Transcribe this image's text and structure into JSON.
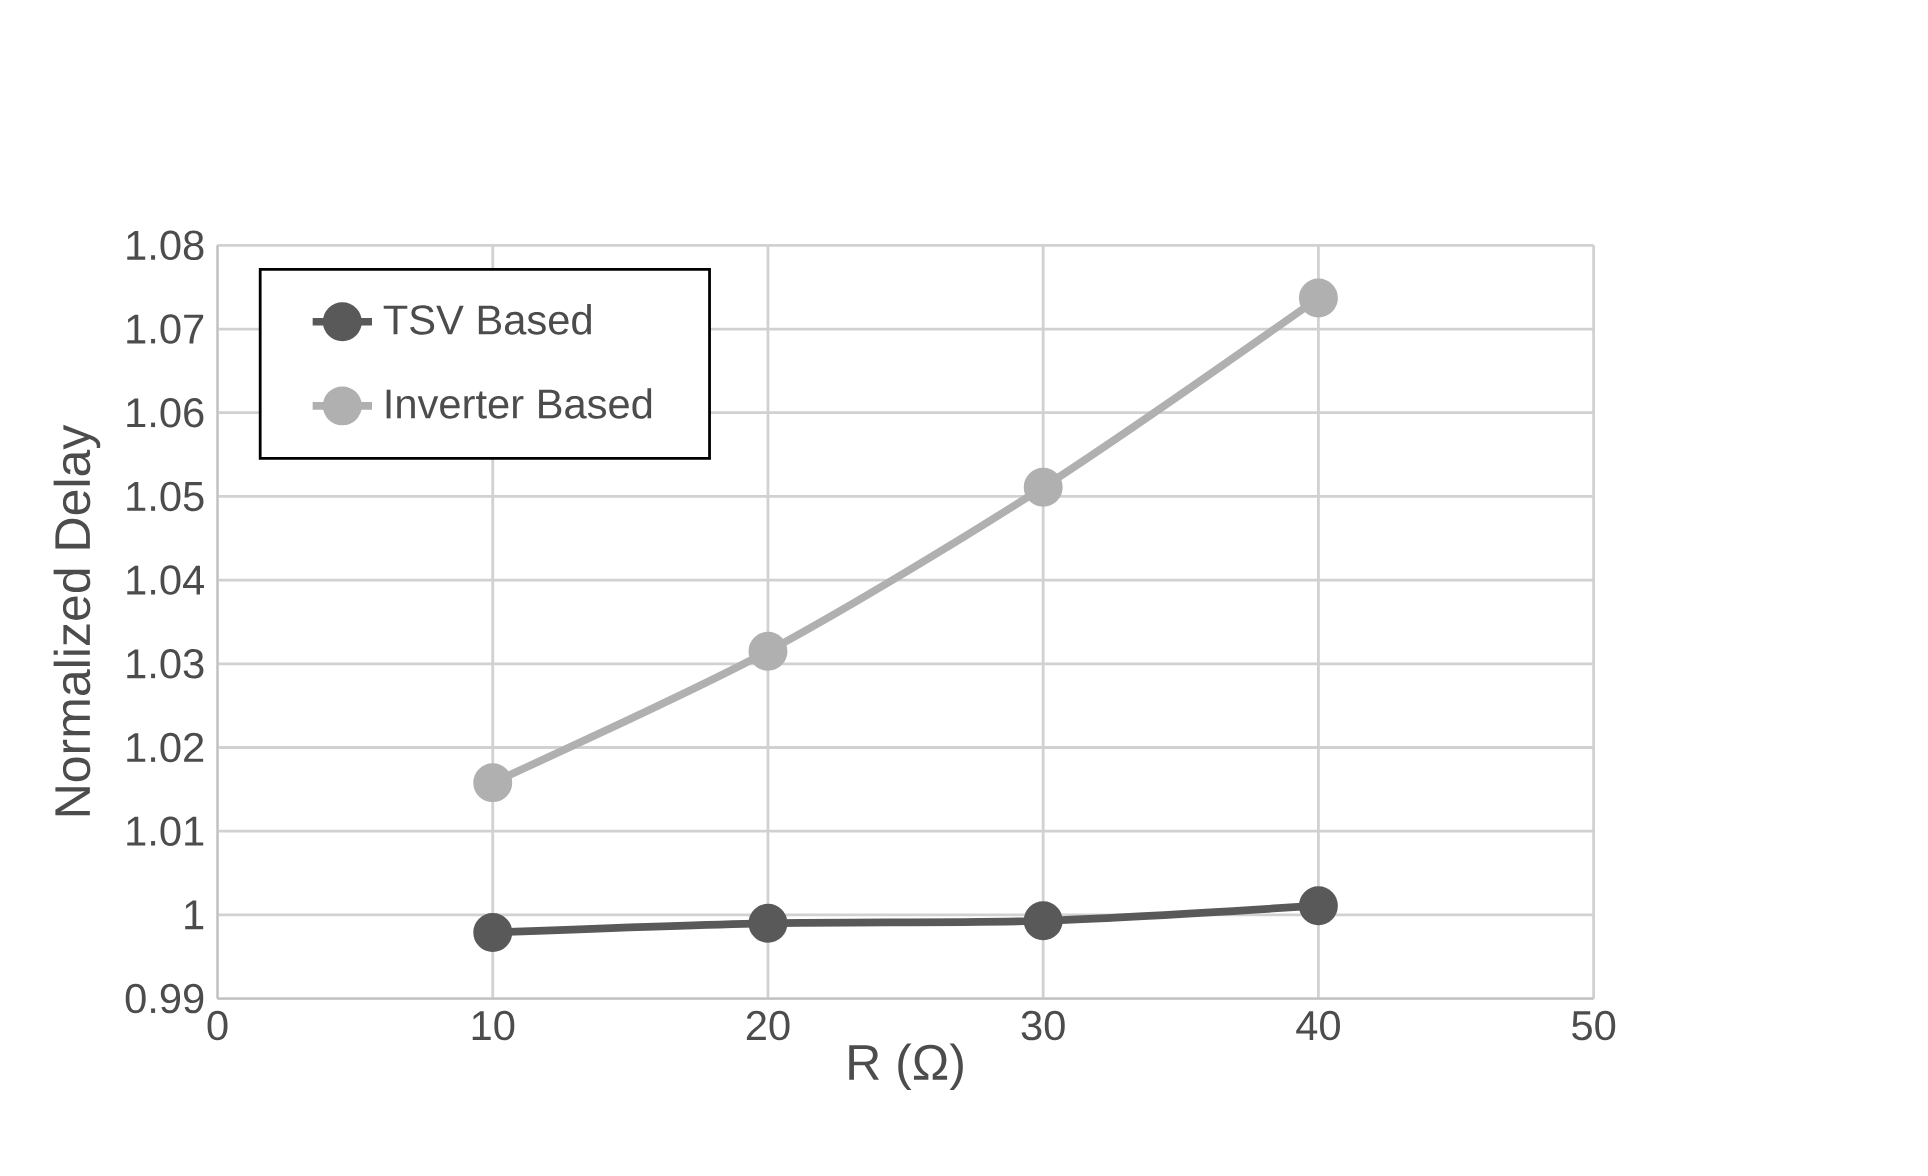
{
  "chart_data": {
    "type": "line",
    "xlabel": "R (Ω)",
    "ylabel": "Normalized Delay",
    "x": [
      10,
      20,
      30,
      40
    ],
    "series": [
      {
        "name": "TSV Based",
        "color": "#595959",
        "values": [
          0.9979,
          0.999,
          0.9993,
          1.0011
        ]
      },
      {
        "name": "Inverter Based",
        "color": "#b0b0b0",
        "values": [
          1.0158,
          1.0315,
          1.0511,
          1.0737
        ]
      }
    ],
    "xlim": [
      0,
      50
    ],
    "xticks": [
      0,
      10,
      20,
      30,
      40,
      50
    ],
    "ylim": [
      0.99,
      1.08
    ],
    "yticks": [
      0.99,
      1,
      1.01,
      1.02,
      1.03,
      1.04,
      1.05,
      1.06,
      1.07,
      1.08
    ],
    "grid": true,
    "legend": "top left",
    "marker": "circle",
    "line_style": "solid"
  }
}
